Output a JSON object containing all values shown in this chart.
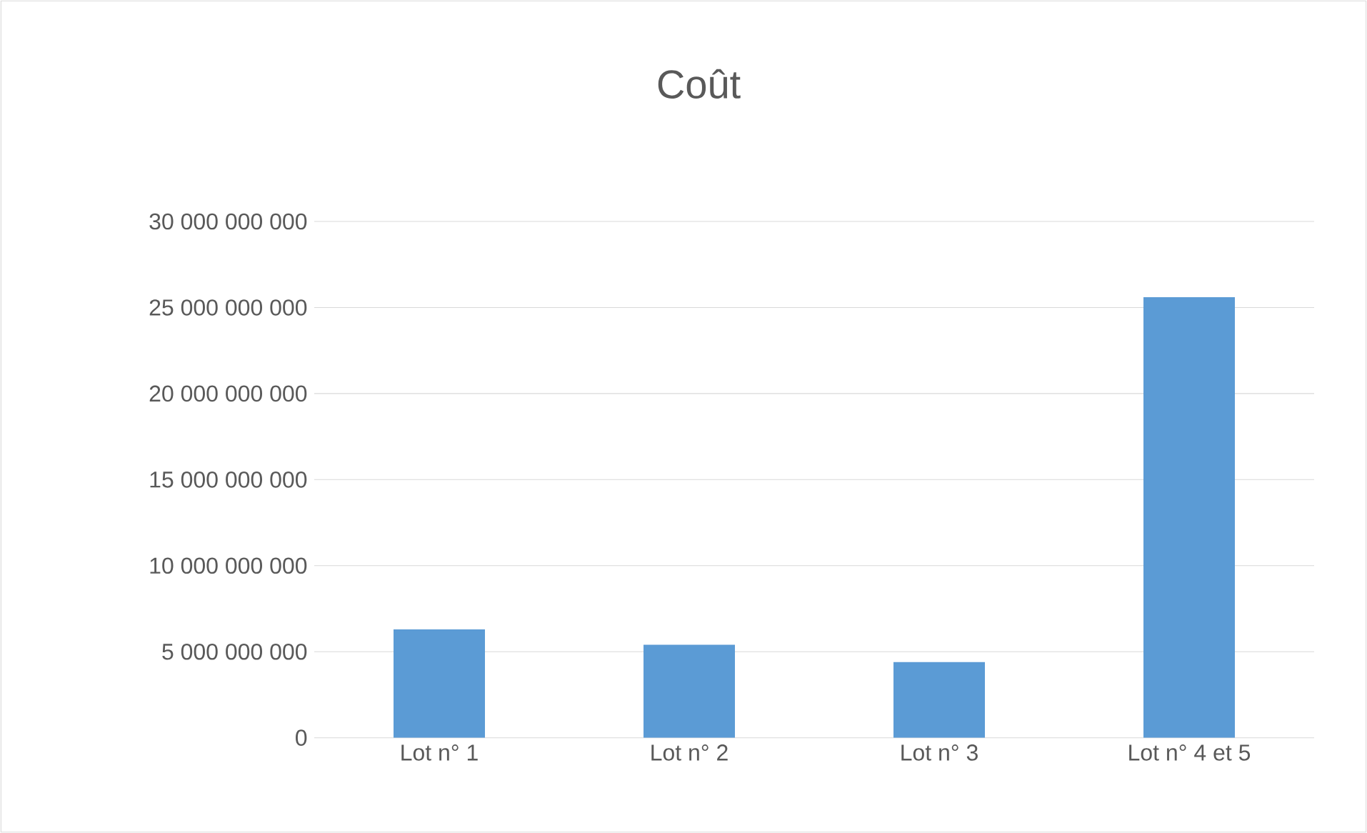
{
  "chart_data": {
    "type": "bar",
    "title": "Coût",
    "categories": [
      "Lot n° 1",
      "Lot n° 2",
      "Lot n° 3",
      "Lot n° 4 et 5"
    ],
    "values": [
      6300000000,
      5400000000,
      4400000000,
      25600000000
    ],
    "color": "#5b9bd5",
    "ylim": [
      0,
      30000000000
    ],
    "yticks": [
      {
        "value": 0,
        "label": "0"
      },
      {
        "value": 5000000000,
        "label": "5 000 000 000"
      },
      {
        "value": 10000000000,
        "label": "10 000 000 000"
      },
      {
        "value": 15000000000,
        "label": "15 000 000 000"
      },
      {
        "value": 20000000000,
        "label": "20 000 000 000"
      },
      {
        "value": 25000000000,
        "label": "25 000 000 000"
      },
      {
        "value": 30000000000,
        "label": "30 000 000 000"
      }
    ],
    "grid": "y"
  }
}
